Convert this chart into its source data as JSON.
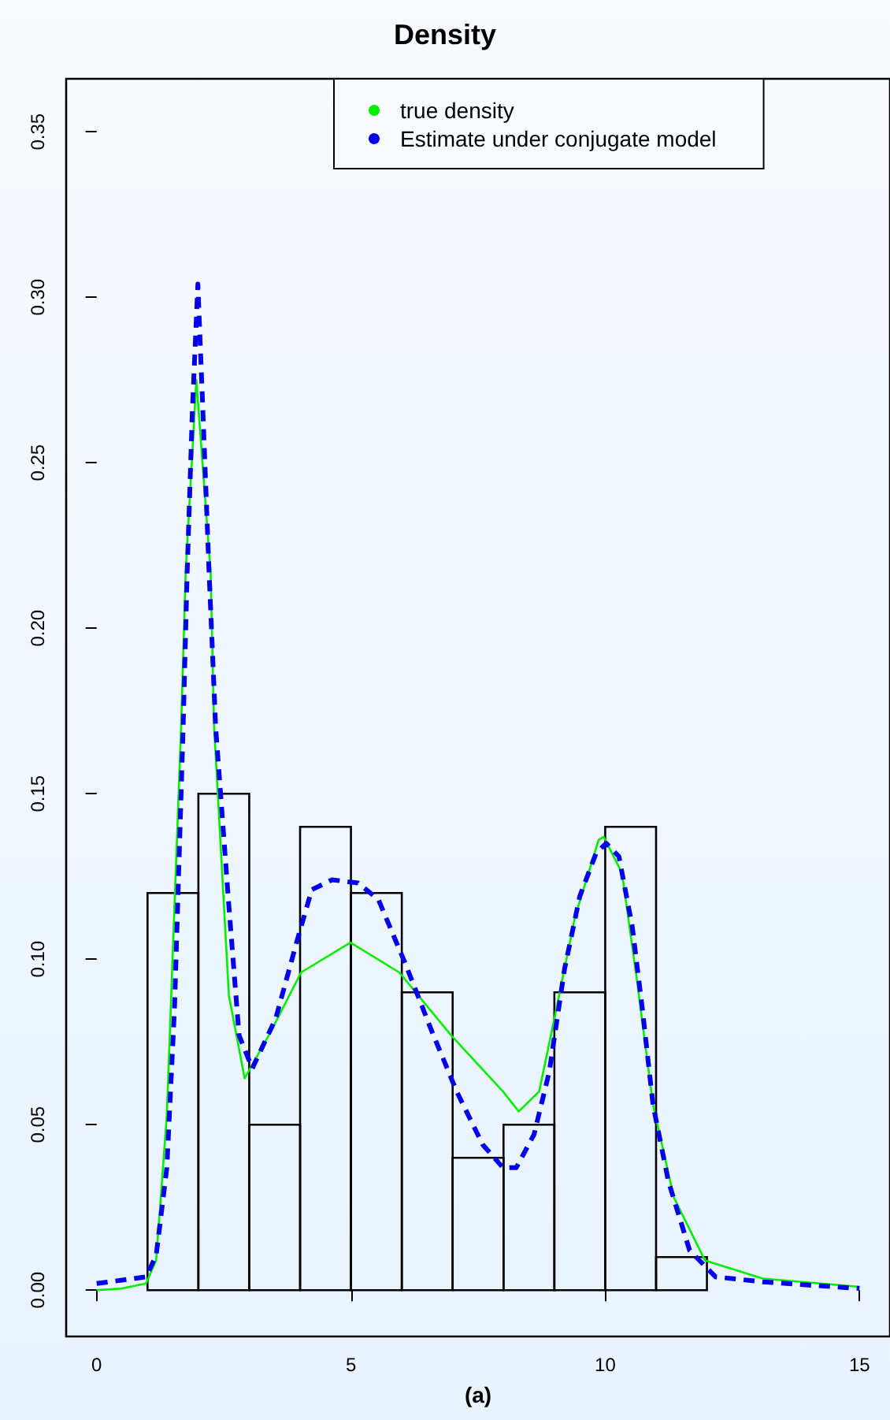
{
  "chart_data": {
    "type": "histogram",
    "title": "Density",
    "xlabel": "(a)",
    "bins": [
      1,
      2,
      3,
      4,
      5,
      6,
      7,
      8,
      9,
      10,
      11,
      12
    ],
    "values": [
      0.12,
      0.15,
      0.05,
      0.14,
      0.12,
      0.09,
      0.04,
      0.05,
      0.09,
      0.14,
      0.01
    ],
    "series": [
      {
        "name": "true density",
        "type": "line",
        "color": "#00ee00",
        "line_style": "solid",
        "x": [
          0,
          0.5,
          0.97,
          1.17,
          1.38,
          1.53,
          1.66,
          1.75,
          1.96,
          2.24,
          2.31,
          2.6,
          2.91,
          3.42,
          4.02,
          4.99,
          5.95,
          6.97,
          7.99,
          8.3,
          8.7,
          9.0,
          9.41,
          9.87,
          9.97,
          10.33,
          10.63,
          10.94,
          11.35,
          11.96,
          13.1,
          15
        ],
        "values": [
          0,
          0.0005,
          0.002,
          0.009,
          0.053,
          0.116,
          0.17,
          0.217,
          0.275,
          0.217,
          0.17,
          0.089,
          0.064,
          0.078,
          0.096,
          0.105,
          0.096,
          0.077,
          0.06,
          0.054,
          0.06,
          0.082,
          0.113,
          0.136,
          0.137,
          0.126,
          0.093,
          0.056,
          0.028,
          0.009,
          0.0035,
          0.001
        ]
      },
      {
        "name": "Estimate under conjugate model",
        "type": "line",
        "color": "#0000ee",
        "line_style": "dashed",
        "x": [
          0,
          0.97,
          1.17,
          1.38,
          1.53,
          1.7,
          1.78,
          1.88,
          1.99,
          2.09,
          2.21,
          2.34,
          2.6,
          2.8,
          3.06,
          3.52,
          3.93,
          4.23,
          4.63,
          5.14,
          5.54,
          6.06,
          6.57,
          7.08,
          7.59,
          7.99,
          8.25,
          8.6,
          8.9,
          9.2,
          9.5,
          9.82,
          10.02,
          10.27,
          10.53,
          10.73,
          10.94,
          11.24,
          11.66,
          12.17,
          13.1,
          15
        ],
        "values": [
          0.002,
          0.004,
          0.0105,
          0.037,
          0.085,
          0.17,
          0.217,
          0.265,
          0.304,
          0.265,
          0.217,
          0.17,
          0.116,
          0.077,
          0.067,
          0.082,
          0.105,
          0.121,
          0.124,
          0.123,
          0.118,
          0.099,
          0.079,
          0.06,
          0.044,
          0.037,
          0.037,
          0.047,
          0.066,
          0.097,
          0.119,
          0.132,
          0.135,
          0.131,
          0.11,
          0.085,
          0.056,
          0.033,
          0.012,
          0.004,
          0.0025,
          0.0005
        ]
      }
    ],
    "xlim": [
      -0.6,
      15.6
    ],
    "xticks": [
      0,
      5,
      10,
      15
    ],
    "ylim": [
      -0.014,
      0.366
    ],
    "yticks": [
      {
        "value": 0,
        "label": "0.00"
      },
      {
        "value": 0.05,
        "label": "0.05"
      },
      {
        "value": 0.1,
        "label": "0.10"
      },
      {
        "value": 0.15,
        "label": "0.15"
      },
      {
        "value": 0.2,
        "label": "0.20"
      },
      {
        "value": 0.25,
        "label": "0.25"
      },
      {
        "value": 0.3,
        "label": "0.30"
      },
      {
        "value": 0.35,
        "label": "0.35"
      }
    ],
    "grid": false,
    "legend": "top right",
    "marker": "none"
  }
}
